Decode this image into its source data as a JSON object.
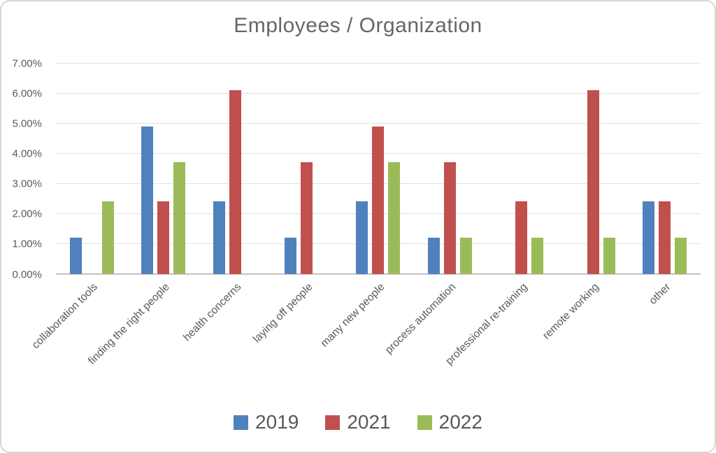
{
  "title": "Employees / Organization",
  "chart_data": {
    "type": "bar",
    "title": "Employees / Organization",
    "categories": [
      "collaboration tools",
      "finding the right people",
      "health concerns",
      "laying off people",
      "many new people",
      "process automation",
      "professional re-training",
      "remote working",
      "other"
    ],
    "series": [
      {
        "name": "2019",
        "color": "#4f81bd",
        "values": [
          1.2,
          4.9,
          2.4,
          1.2,
          2.4,
          1.2,
          0,
          0,
          2.4
        ]
      },
      {
        "name": "2021",
        "color": "#c0504d",
        "values": [
          0,
          2.4,
          6.1,
          3.7,
          4.9,
          3.7,
          2.4,
          6.1,
          2.4
        ]
      },
      {
        "name": "2022",
        "color": "#9bbb59",
        "values": [
          2.4,
          3.7,
          0,
          0,
          3.7,
          1.2,
          1.2,
          1.2,
          1.2
        ]
      }
    ],
    "ylim": [
      0,
      7
    ],
    "y_tick_step": 1,
    "ytick_labels": [
      "0.00%",
      "1.00%",
      "2.00%",
      "3.00%",
      "4.00%",
      "5.00%",
      "6.00%",
      "7.00%"
    ],
    "xlabel": "",
    "ylabel": "",
    "grid": true,
    "legend_position": "bottom",
    "colors": {
      "grid": "#e2e2e2",
      "axis": "#c3c3c3",
      "text": "#595959",
      "title_text": "#666666"
    }
  }
}
